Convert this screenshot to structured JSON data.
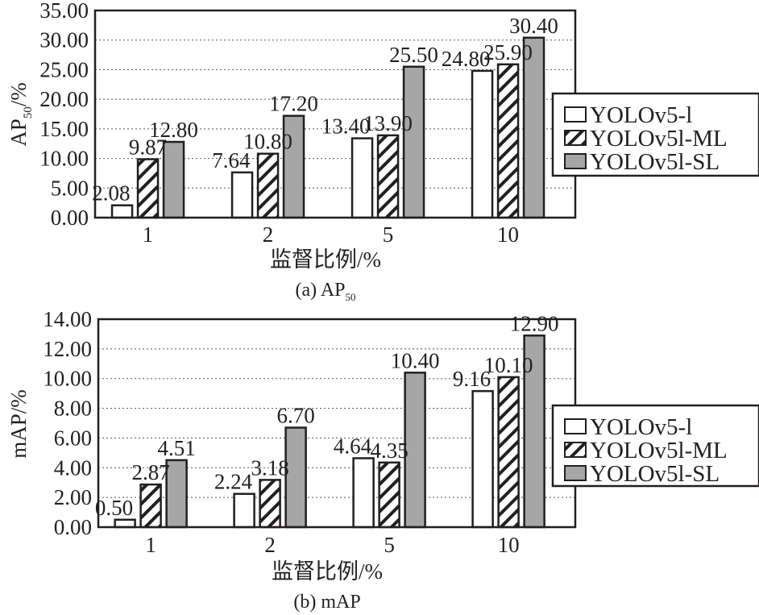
{
  "figure": {
    "legend_items": [
      {
        "label": "YOLOv5-l",
        "fill": "#ffffff",
        "pattern": "none"
      },
      {
        "label": "YOLOv5l-ML",
        "fill": "#ffffff",
        "pattern": "diagonal-hatch"
      },
      {
        "label": "YOLOv5l-SL",
        "fill": "#a6a6a6",
        "pattern": "none"
      }
    ]
  },
  "chart_data": [
    {
      "type": "bar",
      "title": "",
      "caption": "(a) AP",
      "caption_sub": "50",
      "xlabel": "监督比例/%",
      "ylabel": "AP",
      "ylabel_sub": "50",
      "ylabel_suffix": "/%",
      "categories": [
        "1",
        "2",
        "5",
        "10"
      ],
      "ylim": [
        0,
        35
      ],
      "yticks": [
        0,
        5,
        10,
        15,
        20,
        25,
        30,
        35
      ],
      "ytick_labels": [
        "0.00",
        "5.00",
        "10.00",
        "15.00",
        "20.00",
        "25.00",
        "30.00",
        "35.00"
      ],
      "grid": true,
      "legend_position": "right",
      "series": [
        {
          "name": "YOLOv5-l",
          "values": [
            2.08,
            7.64,
            13.4,
            24.8
          ],
          "labels": [
            "2.08",
            "7.64",
            "13.40",
            "24.80"
          ]
        },
        {
          "name": "YOLOv5l-ML",
          "values": [
            9.87,
            10.8,
            13.9,
            25.9
          ],
          "labels": [
            "9.87",
            "10.80",
            "13.90",
            "25.90"
          ]
        },
        {
          "name": "YOLOv5l-SL",
          "values": [
            12.8,
            17.2,
            25.5,
            30.4
          ],
          "labels": [
            "12.80",
            "17.20",
            "25.50",
            "30.40"
          ]
        }
      ]
    },
    {
      "type": "bar",
      "title": "",
      "caption": "(b) mAP",
      "caption_sub": "",
      "xlabel": "监督比例/%",
      "ylabel": "mAP",
      "ylabel_sub": "",
      "ylabel_suffix": "/%",
      "categories": [
        "1",
        "2",
        "5",
        "10"
      ],
      "ylim": [
        0,
        14
      ],
      "yticks": [
        0,
        2,
        4,
        6,
        8,
        10,
        12,
        14
      ],
      "ytick_labels": [
        "0.00",
        "2.00",
        "4.00",
        "6.00",
        "8.00",
        "10.00",
        "12.00",
        "14.00"
      ],
      "grid": true,
      "legend_position": "right",
      "series": [
        {
          "name": "YOLOv5-l",
          "values": [
            0.5,
            2.24,
            4.64,
            9.16
          ],
          "labels": [
            "0.50",
            "2.24",
            "4.64",
            "9.16"
          ]
        },
        {
          "name": "YOLOv5l-ML",
          "values": [
            2.87,
            3.18,
            4.35,
            10.1
          ],
          "labels": [
            "2.87",
            "3.18",
            "4.35",
            "10.10"
          ]
        },
        {
          "name": "YOLOv5l-SL",
          "values": [
            4.51,
            6.7,
            10.4,
            12.9
          ],
          "labels": [
            "4.51",
            "6.70",
            "10.40",
            "12.90"
          ]
        }
      ]
    }
  ]
}
